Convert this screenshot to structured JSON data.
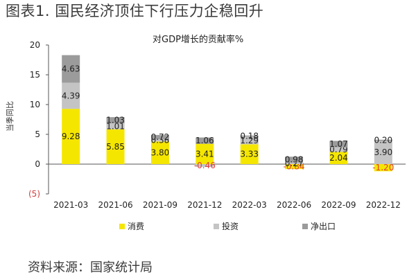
{
  "figure_title": "图表1. 国民经济顶住下行压力企稳回升",
  "source_note": "资料来源：国家统计局",
  "chart_data": {
    "type": "bar",
    "stacked": true,
    "title": "对GDP增长的贡献率%",
    "ylabel": "当季同比",
    "xlabel": "",
    "ylim": [
      -5,
      20
    ],
    "yticks": [
      -5,
      0,
      5,
      10,
      15,
      20
    ],
    "ytick_labels": [
      "(5)",
      "0",
      "5",
      "10",
      "15",
      "20"
    ],
    "grid": false,
    "legend_position": "bottom",
    "categories": [
      "2021-03",
      "2021-06",
      "2021-09",
      "2021-12",
      "2022-03",
      "2022-06",
      "2022-09",
      "2022-12"
    ],
    "series": [
      {
        "name": "消费",
        "color": "#f5e600",
        "values": [
          9.28,
          5.85,
          3.8,
          3.41,
          3.33,
          -0.84,
          2.04,
          -1.2
        ],
        "labels": [
          "9.28",
          "5.85",
          "3.80",
          "3.41",
          "3.33",
          "-0.84",
          "2.04",
          "-1.20"
        ]
      },
      {
        "name": "投资",
        "color": "#c4c4c4",
        "values": [
          4.39,
          1.01,
          0.38,
          -0.46,
          1.29,
          0.27,
          0.79,
          3.9
        ],
        "labels": [
          "4.39",
          "1.01",
          "0.38",
          "-0.46",
          "1.29",
          "0.27",
          "0.79",
          "3.90"
        ]
      },
      {
        "name": "净出口",
        "color": "#9b9b9b",
        "values": [
          4.63,
          1.03,
          0.72,
          1.06,
          0.18,
          0.98,
          1.07,
          0.2
        ],
        "labels": [
          "4.63",
          "1.03",
          "0.72",
          "1.06",
          "0.18",
          "0.98",
          "1.07",
          "0.20"
        ]
      }
    ]
  }
}
